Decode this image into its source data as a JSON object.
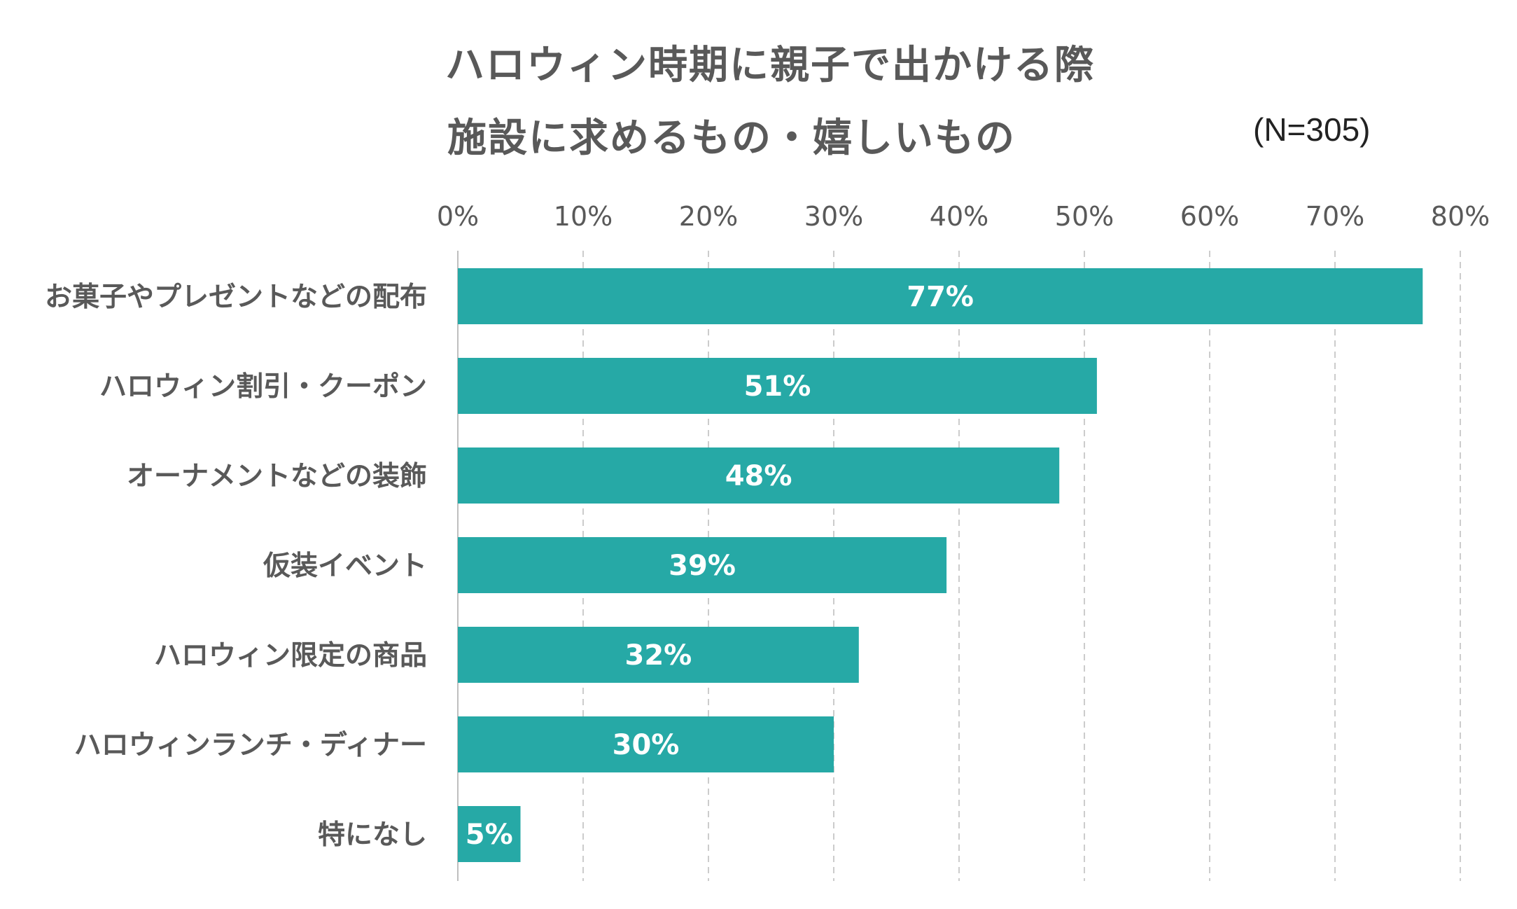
{
  "chart_data": {
    "type": "bar",
    "orientation": "horizontal",
    "title": [
      "ハロウィン時期に親子で出かける際",
      "施設に求めるもの・嬉しいもの"
    ],
    "note": "(N=305)",
    "categories": [
      "お菓子やプレゼントなどの配布",
      "ハロウィン割引・クーポン",
      "オーナメントなどの装飾",
      "仮装イベント",
      "ハロウィン限定の商品",
      "ハロウィンランチ・ディナー",
      "特になし"
    ],
    "values": [
      77,
      51,
      48,
      39,
      32,
      30,
      5
    ],
    "data_labels": [
      "77%",
      "51%",
      "48%",
      "39%",
      "32%",
      "30%",
      "5%"
    ],
    "xlim": [
      0,
      80
    ],
    "x_ticks": [
      "0%",
      "10%",
      "20%",
      "30%",
      "40%",
      "50%",
      "60%",
      "70%",
      "80%"
    ],
    "grid": true,
    "axis_position": "top",
    "colors": {
      "bar": "#26A9A6",
      "grid": "#CCCCCC",
      "text": "#595959",
      "label": "#FFFFFF"
    }
  }
}
